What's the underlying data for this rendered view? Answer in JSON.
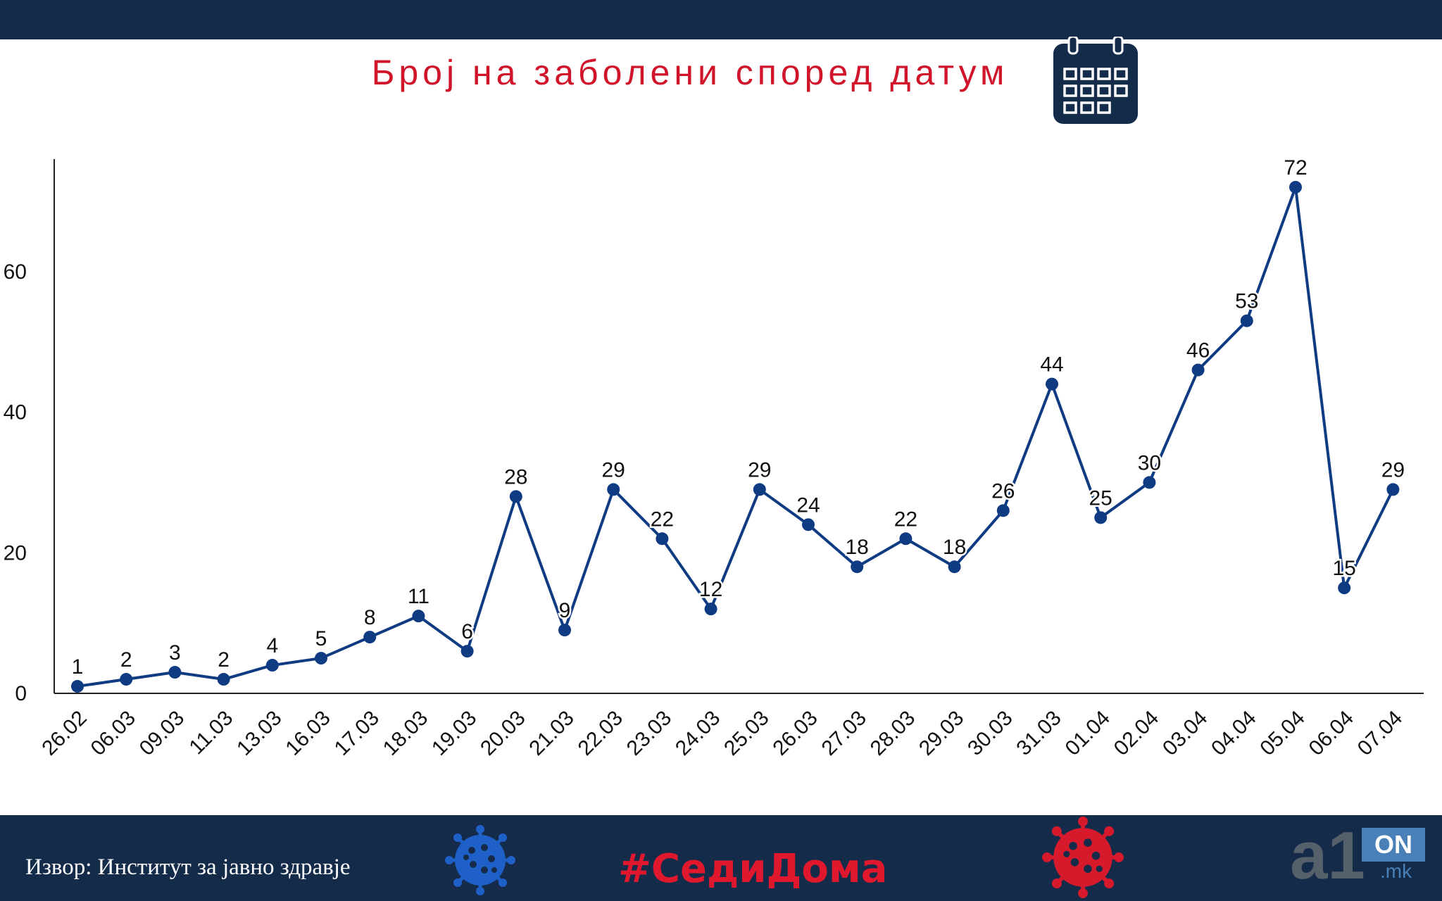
{
  "header": {
    "title": "Број на заболени според датум",
    "icon": "calendar-icon"
  },
  "chart_data": {
    "type": "line",
    "title": "Број на заболени според датум",
    "xlabel": "",
    "ylabel": "",
    "categories": [
      "26.02",
      "06.03",
      "09.03",
      "11.03",
      "13.03",
      "16.03",
      "17.03",
      "18.03",
      "19.03",
      "20.03",
      "21.03",
      "22.03",
      "23.03",
      "24.03",
      "25.03",
      "26.03",
      "27.03",
      "28.03",
      "29.03",
      "30.03",
      "31.03",
      "01.04",
      "02.04",
      "03.04",
      "04.04",
      "05.04",
      "06.04",
      "07.04"
    ],
    "series": [
      {
        "values": [
          1,
          2,
          3,
          2,
          4,
          5,
          8,
          11,
          6,
          28,
          9,
          29,
          22,
          12,
          29,
          24,
          18,
          22,
          18,
          26,
          44,
          25,
          30,
          46,
          53,
          72,
          15,
          29
        ]
      }
    ],
    "yticks": [
      0,
      20,
      40,
      60
    ],
    "ylim": [
      0,
      76
    ],
    "grid": false,
    "data_labels": true,
    "line_color": "#0f3b82"
  },
  "footer": {
    "source": "Извор: Институт за јавно здравје",
    "hashtag": "#СедиДома",
    "logo_main": "a1",
    "logo_badge": "ON",
    "logo_domain": ".mk"
  },
  "colors": {
    "bar": "#152b4a",
    "accent": "#d0142a",
    "line": "#0f3b82",
    "virus_blue": "#1f5fc8",
    "virus_red": "#d61a2c"
  }
}
